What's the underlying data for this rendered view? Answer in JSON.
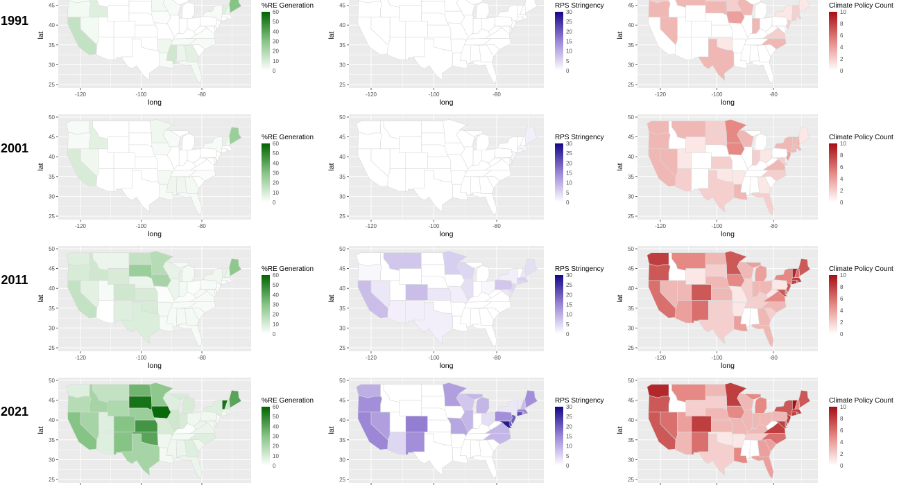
{
  "axes": {
    "xlabel": "long",
    "ylabel": "lat",
    "xticks": [
      -120,
      -100,
      -80
    ],
    "yticks": [
      25,
      30,
      35,
      40,
      45,
      50
    ]
  },
  "variables": [
    {
      "key": "re",
      "legend_title": "%RE Generation",
      "limits": [
        0,
        60
      ],
      "breaks": [
        0,
        10,
        20,
        30,
        40,
        50,
        60
      ],
      "colors": [
        "#ffffff",
        "#86c486",
        "#006400"
      ]
    },
    {
      "key": "rps",
      "legend_title": "RPS Stringency",
      "limits": [
        0,
        30
      ],
      "breaks": [
        0,
        5,
        10,
        15,
        20,
        25,
        30
      ],
      "colors": [
        "#ffffff",
        "#9c86d6",
        "#14088a"
      ]
    },
    {
      "key": "climate",
      "legend_title": "Climate Policy Count",
      "limits": [
        0,
        10
      ],
      "breaks": [
        0,
        2,
        4,
        6,
        8,
        10
      ],
      "colors": [
        "#ffffff",
        "#e68884",
        "#a50f15"
      ]
    }
  ],
  "rows": [
    {
      "year": "1991",
      "re": {
        "CA": 15,
        "ME": 30,
        "WA": 2,
        "ID": 8,
        "OR": 3,
        "NV": 3,
        "VT": 8,
        "NH": 5,
        "MS": 12,
        "AL": 5,
        "GA": 7,
        "AR": 4,
        "LA": 2,
        "FL": 3,
        "TN": 2,
        "NC": 2,
        "VA": 1,
        "MN": 3,
        "WI": 2,
        "IA": 1,
        "NY": 2
      },
      "rps": {},
      "climate": {
        "WA": 2,
        "OR": 3,
        "NV": 3,
        "MT": 3,
        "ND": 2,
        "SD": 3,
        "MN": 2,
        "WI": 3,
        "IA": 4,
        "IN": 3,
        "TX": 3,
        "OK": 1,
        "NC": 3,
        "VA": 2,
        "NY": 1,
        "VT": 2,
        "NH": 2,
        "MA": 2,
        "CT": 2,
        "NJ": 2,
        "ME": 1
      }
    },
    {
      "year": "2001",
      "re": {
        "CA": 10,
        "ME": 25,
        "ID": 7,
        "NV": 4,
        "OR": 2,
        "WA": 2,
        "VT": 6,
        "NH": 4,
        "MN": 4,
        "IA": 2,
        "AR": 3,
        "AL": 4,
        "MS": 4,
        "GA": 3,
        "FL": 2,
        "LA": 2,
        "WI": 2,
        "NY": 2,
        "TN": 1,
        "NC": 1
      },
      "rps": {
        "ME": 2,
        "CT": 1,
        "NJ": 1,
        "MA": 1
      },
      "climate": {
        "WA": 3,
        "OR": 3,
        "CA": 3,
        "NV": 3,
        "MT": 3,
        "ND": 2,
        "SD": 2,
        "WY": 1,
        "UT": 1,
        "AZ": 2,
        "TX": 2,
        "KS": 2,
        "OK": 1,
        "AR": 1,
        "MN": 5,
        "IA": 5,
        "WI": 3,
        "IN": 2,
        "OH": 1,
        "LA": 3,
        "FL": 2,
        "GA": 1,
        "NC": 2,
        "VA": 3,
        "NY": 3,
        "VT": 3,
        "NH": 3,
        "MA": 3,
        "CT": 3,
        "NJ": 4,
        "ME": 1,
        "MD": 2
      }
    },
    {
      "year": "2011",
      "re": {
        "CA": 15,
        "ME": 28,
        "SD": 25,
        "IA": 22,
        "MN": 18,
        "ND": 15,
        "ID": 12,
        "WY": 10,
        "OR": 10,
        "WA": 8,
        "CO": 12,
        "KS": 10,
        "OK": 10,
        "NM": 8,
        "TX": 9,
        "NV": 7,
        "MT": 5,
        "UT": 2,
        "NE": 5,
        "WI": 6,
        "IL": 5,
        "VT": 6,
        "NH": 5,
        "NY": 4,
        "IN": 3,
        "MI": 3,
        "PA": 2,
        "MO": 1,
        "AR": 3,
        "LA": 2,
        "MS": 2,
        "AL": 3,
        "GA": 3,
        "FL": 2,
        "TN": 2,
        "KY": 1,
        "OH": 1,
        "WV": 2,
        "VA": 2,
        "NC": 2,
        "SC": 2,
        "MA": 2,
        "CT": 1,
        "RI": 1,
        "NJ": 1,
        "MD": 2,
        "DE": 1
      },
      "rps": {
        "CA": 8,
        "MT": 7,
        "CO": 8,
        "NV": 3,
        "AZ": 2,
        "NM": 2,
        "TX": 2,
        "MN": 6,
        "WI": 5,
        "IL": 4,
        "KS": 3,
        "MO": 2,
        "PA": 7,
        "ME": 4,
        "MA": 6,
        "CT": 5,
        "RI": 4,
        "NJ": 5,
        "NY": 2,
        "OR": 1,
        "DE": 3,
        "MD": 3,
        "NH": 3,
        "OH": 1
      },
      "climate": {
        "WA": 8,
        "OR": 7,
        "CA": 6,
        "NV": 3,
        "MT": 5,
        "WY": 1,
        "UT": 3,
        "CO": 7,
        "AZ": 4,
        "NM": 6,
        "ND": 3,
        "SD": 2,
        "NE": 3,
        "KS": 3,
        "OK": 2,
        "TX": 2,
        "MN": 7,
        "IA": 5,
        "MO": 1,
        "AR": 1,
        "LA": 4,
        "WI": 3,
        "IL": 2,
        "MI": 4,
        "IN": 3,
        "OH": 3,
        "KY": 2,
        "TN": 2,
        "GA": 3,
        "FL": 3,
        "SC": 2,
        "NC": 3,
        "VA": 5,
        "WV": 1,
        "PA": 1,
        "NY": 5,
        "VT": 9,
        "NH": 6,
        "ME": 7,
        "MA": 8,
        "CT": 8,
        "RI": 6,
        "NJ": 7,
        "MD": 7,
        "DE": 6
      }
    },
    {
      "year": "2021",
      "re": {
        "SD": 55,
        "IA": 58,
        "KS": 45,
        "ND": 35,
        "OK": 40,
        "ME": 40,
        "VT": 55,
        "CA": 30,
        "NM": 30,
        "CO": 30,
        "MN": 28,
        "NV": 22,
        "ID": 22,
        "WY": 20,
        "OR": 18,
        "TX": 22,
        "NE": 25,
        "MT": 15,
        "WA": 8,
        "UT": 8,
        "AZ": 8,
        "MO": 10,
        "IL": 12,
        "IN": 10,
        "MI": 10,
        "NY": 8,
        "NH": 12,
        "GA": 8,
        "NC": 8,
        "FL": 5,
        "WI": 8,
        "OH": 4,
        "PA": 4,
        "KY": 1,
        "TN": 3,
        "AL": 5,
        "MS": 4,
        "LA": 3,
        "AR": 4,
        "WV": 5,
        "VA": 5,
        "SC": 4,
        "MA": 5,
        "CT": 3,
        "RI": 3,
        "NJ": 3,
        "MD": 4,
        "DE": 3
      },
      "rps": {
        "CA": 15,
        "OR": 14,
        "WA": 10,
        "NV": 12,
        "AZ": 5,
        "NM": 14,
        "CO": 16,
        "MN": 12,
        "WI": 7,
        "MI": 9,
        "IL": 9,
        "MO": 11,
        "OH": 4,
        "PA": 14,
        "NY": 3,
        "VT": 3,
        "NH": 8,
        "ME": 14,
        "MA": 15,
        "CT": 22,
        "RI": 14,
        "NJ": 20,
        "MD": 28,
        "DE": 25,
        "VA": 9,
        "NC": 9
      },
      "climate": {
        "WA": 9,
        "OR": 7,
        "CA": 7,
        "NV": 6,
        "MT": 5,
        "WY": 2,
        "UT": 4,
        "CO": 8,
        "AZ": 3,
        "NM": 6,
        "ND": 3,
        "SD": 2,
        "NE": 3,
        "KS": 3,
        "OK": 1,
        "TX": 2,
        "MN": 8,
        "IA": 5,
        "MO": 3,
        "AR": 1,
        "LA": 5,
        "WI": 3,
        "IL": 3,
        "MI": 5,
        "IN": 3,
        "OH": 3,
        "KY": 3,
        "TN": 2,
        "GA": 4,
        "FL": 4,
        "SC": 4,
        "NC": 6,
        "VA": 8,
        "PA": 3,
        "NY": 7,
        "VT": 10,
        "NH": 5,
        "ME": 7,
        "MA": 8,
        "CT": 8,
        "RI": 7,
        "NJ": 8,
        "MD": 8,
        "DE": 7
      }
    }
  ]
}
